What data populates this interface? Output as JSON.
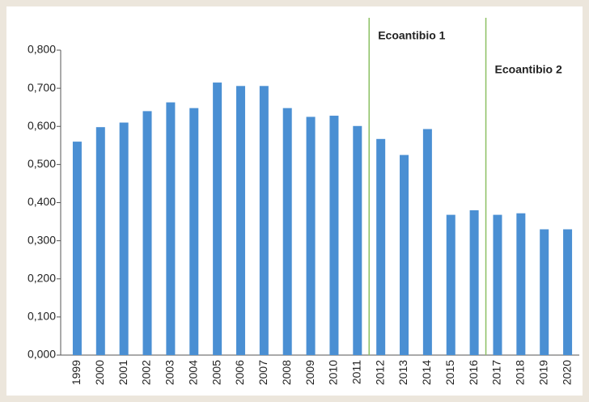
{
  "chart_data": {
    "type": "bar",
    "categories": [
      "1999",
      "2000",
      "2001",
      "2002",
      "2003",
      "2004",
      "2005",
      "2006",
      "2007",
      "2008",
      "2009",
      "2010",
      "2011",
      "2012",
      "2013",
      "2014",
      "2015",
      "2016",
      "2017",
      "2018",
      "2019",
      "2020"
    ],
    "values": [
      0.56,
      0.598,
      0.61,
      0.64,
      0.663,
      0.648,
      0.715,
      0.706,
      0.706,
      0.648,
      0.625,
      0.628,
      0.601,
      0.567,
      0.525,
      0.593,
      0.368,
      0.38,
      0.368,
      0.372,
      0.33,
      0.33
    ],
    "color": "#4a8fd3",
    "ylim": [
      0,
      0.8
    ],
    "yticks": [
      {
        "value": 0,
        "label": "0,000"
      },
      {
        "value": 0.1,
        "label": "0,100"
      },
      {
        "value": 0.2,
        "label": "0,200"
      },
      {
        "value": 0.3,
        "label": "0,300"
      },
      {
        "value": 0.4,
        "label": "0,400"
      },
      {
        "value": 0.5,
        "label": "0,500"
      },
      {
        "value": 0.6,
        "label": "0,600"
      },
      {
        "value": 0.7,
        "label": "0,700"
      },
      {
        "value": 0.8,
        "label": "0,800"
      }
    ],
    "grid": false,
    "annotations": [
      {
        "text": "Ecoantibio 1",
        "color": "#7cb84a",
        "line_color": "#8cc063",
        "start": "2012"
      },
      {
        "text": "Ecoantibio 2",
        "color": "#f2a93b",
        "line_color": "#8cc063",
        "start": "2017"
      }
    ]
  }
}
